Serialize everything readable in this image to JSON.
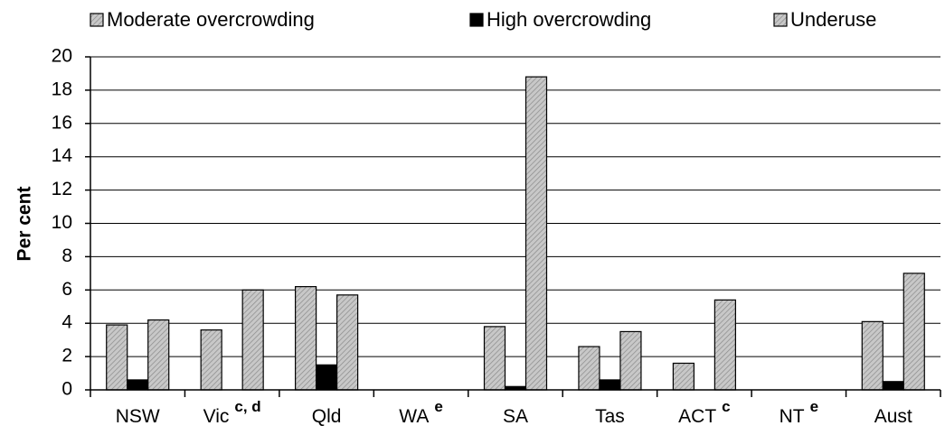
{
  "chart_data": {
    "type": "bar",
    "y_label": "Per cent",
    "categories": [
      "NSW",
      "Vic",
      "Qld",
      "WA",
      "SA",
      "Tas",
      "ACT",
      "NT",
      "Aust"
    ],
    "category_notes": [
      null,
      "c, d",
      null,
      "e",
      null,
      null,
      "c",
      "e",
      null
    ],
    "series": [
      {
        "name": "Moderate overcrowding",
        "color": "#c8c8c8",
        "values": [
          3.9,
          3.6,
          6.2,
          null,
          3.8,
          2.6,
          1.6,
          null,
          4.1
        ]
      },
      {
        "name": "High overcrowding",
        "color": "#000000",
        "values": [
          0.6,
          null,
          1.5,
          null,
          0.2,
          0.6,
          null,
          null,
          0.5
        ]
      },
      {
        "name": "Underuse",
        "color": "#c8c8c8",
        "values": [
          4.2,
          6.0,
          5.7,
          null,
          18.8,
          3.5,
          5.4,
          null,
          7.0
        ]
      }
    ],
    "ylim": [
      0,
      20
    ],
    "yticks": [
      0,
      2,
      4,
      6,
      8,
      10,
      12,
      14,
      16,
      18,
      20
    ],
    "grid": true
  }
}
